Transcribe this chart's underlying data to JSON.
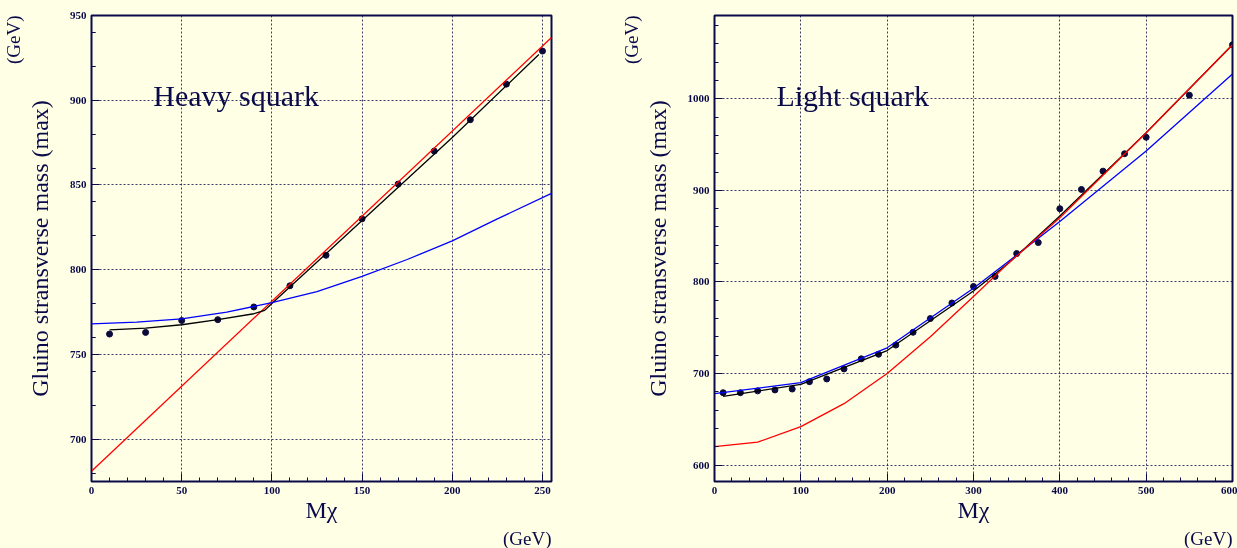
{
  "chart_data": [
    {
      "type": "scatter",
      "title": "Heavy squark",
      "xlabel": "Mχ",
      "ylabel": "Gluino stransverse mass (max)",
      "annotations": [
        "(GeV)",
        "(GeV)"
      ],
      "xlim": [
        0,
        255
      ],
      "ylim": [
        675,
        950
      ],
      "xticks": [
        0,
        50,
        100,
        150,
        200,
        250
      ],
      "yticks": [
        700,
        750,
        800,
        850,
        900,
        950
      ],
      "grid": true,
      "series": [
        {
          "marker": "circle",
          "color": "#0a0a3c",
          "x": [
            10,
            30,
            50,
            70,
            90,
            110,
            130,
            150,
            170,
            190,
            210,
            230,
            250
          ],
          "values": [
            762,
            763,
            770,
            770.5,
            778,
            790.5,
            808.5,
            830,
            850.5,
            870,
            888.5,
            909.5,
            929
          ]
        },
        {
          "type": "line",
          "color": "#ff0000",
          "x": [
            0,
            255
          ],
          "values": [
            681,
            937
          ]
        },
        {
          "type": "line",
          "color": "#000000",
          "x": [
            10,
            30,
            50,
            70,
            90,
            96,
            100,
            150,
            200,
            248
          ],
          "values": [
            764.5,
            765.5,
            767.5,
            770.5,
            774,
            776,
            780,
            829,
            878,
            927
          ]
        },
        {
          "type": "line",
          "color": "#0000ff",
          "x": [
            0,
            25,
            50,
            75,
            100,
            125,
            150,
            175,
            200,
            225,
            255
          ],
          "values": [
            768,
            769,
            771,
            775,
            780.5,
            787,
            796,
            806,
            817,
            830,
            845
          ]
        }
      ]
    },
    {
      "type": "scatter",
      "title": "Light squark",
      "xlabel": "Mχ",
      "ylabel": "Gluino stransverse mass (max)",
      "annotations": [
        "(GeV)",
        "(GeV)"
      ],
      "xlim": [
        0,
        600
      ],
      "ylim": [
        582,
        1091
      ],
      "xticks": [
        0,
        100,
        200,
        300,
        400,
        500,
        600
      ],
      "yticks": [
        600,
        700,
        800,
        900,
        1000
      ],
      "grid": true,
      "series": [
        {
          "marker": "circle",
          "color": "#0a0a3c",
          "x": [
            10,
            30,
            50,
            70,
            90,
            110,
            130,
            150,
            170,
            190,
            210,
            230,
            250,
            275,
            300,
            325,
            350,
            375,
            400,
            425,
            450,
            475,
            500,
            550,
            600
          ],
          "values": [
            679,
            679,
            681,
            682,
            683,
            691,
            694,
            705,
            716,
            721,
            731,
            745,
            760,
            777,
            795,
            806,
            831,
            843,
            880,
            901,
            921,
            940,
            958,
            1004,
            1059
          ]
        },
        {
          "type": "line",
          "color": "#0000ff",
          "x": [
            0,
            100,
            200,
            300,
            340,
            400,
            500,
            600
          ],
          "values": [
            678,
            690,
            728,
            793,
            822,
            866,
            943,
            1027
          ]
        },
        {
          "type": "line",
          "color": "#000000",
          "x": [
            10,
            100,
            200,
            300,
            340,
            400,
            500,
            600
          ],
          "values": [
            675,
            688,
            725,
            790,
            820,
            872,
            963,
            1059
          ]
        },
        {
          "type": "line",
          "color": "#ff0000",
          "x": [
            0,
            50,
            100,
            150,
            200,
            250,
            300,
            340,
            400,
            500,
            600
          ],
          "values": [
            620,
            625,
            642,
            667,
            700,
            740,
            784,
            820,
            870,
            963,
            1059
          ]
        }
      ]
    }
  ]
}
